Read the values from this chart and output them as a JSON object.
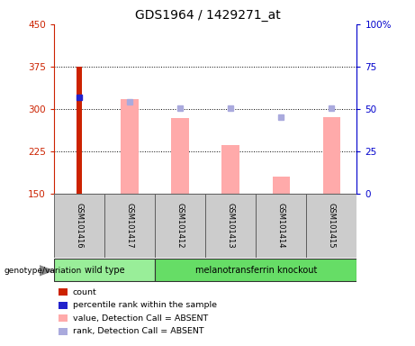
{
  "title": "GDS1964 / 1429271_at",
  "samples": [
    "GSM101416",
    "GSM101417",
    "GSM101412",
    "GSM101413",
    "GSM101414",
    "GSM101415"
  ],
  "ylim_left": [
    150,
    450
  ],
  "ylim_right": [
    0,
    100
  ],
  "yticks_left": [
    150,
    225,
    300,
    375,
    450
  ],
  "yticks_right": [
    0,
    25,
    50,
    75,
    100
  ],
  "left_axis_color": "#cc2200",
  "right_axis_color": "#0000cc",
  "bar_values": {
    "GSM101416": {
      "count": 375,
      "percentile": 320,
      "value_absent": null,
      "rank_absent": null
    },
    "GSM101417": {
      "count": null,
      "percentile": null,
      "value_absent": 318,
      "rank_absent": 312
    },
    "GSM101412": {
      "count": null,
      "percentile": null,
      "value_absent": 284,
      "rank_absent": 302
    },
    "GSM101413": {
      "count": null,
      "percentile": null,
      "value_absent": 236,
      "rank_absent": 302
    },
    "GSM101414": {
      "count": null,
      "percentile": null,
      "value_absent": 180,
      "rank_absent": 286
    },
    "GSM101415": {
      "count": null,
      "percentile": null,
      "value_absent": 286,
      "rank_absent": 302
    }
  },
  "count_color": "#cc2200",
  "percentile_color": "#2222cc",
  "value_absent_color": "#ffaaaa",
  "rank_absent_color": "#aaaadd",
  "baseline": 150,
  "group_colors": {
    "wild type": "#99ee99",
    "melanotransferrin knockout": "#66dd66"
  },
  "group_positions": {
    "wild type": [
      0,
      1
    ],
    "melanotransferrin knockout": [
      2,
      5
    ]
  },
  "legend_items": [
    {
      "label": "count",
      "color": "#cc2200"
    },
    {
      "label": "percentile rank within the sample",
      "color": "#2222cc"
    },
    {
      "label": "value, Detection Call = ABSENT",
      "color": "#ffaaaa"
    },
    {
      "label": "rank, Detection Call = ABSENT",
      "color": "#aaaadd"
    }
  ],
  "bar_width": 0.35,
  "count_bar_width": 0.1,
  "grid_dotted_vals": [
    225,
    300,
    375
  ]
}
